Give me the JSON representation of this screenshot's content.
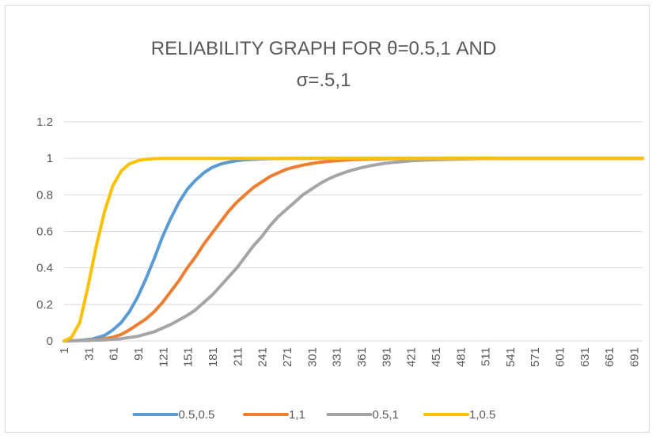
{
  "chart_data": {
    "type": "line",
    "title_lines": [
      "RELIABILITY GRAPH FOR θ=0.5,1 AND",
      "σ=.5,1"
    ],
    "xlabel": "",
    "ylabel": "",
    "ylim": [
      0,
      1.2
    ],
    "yticks": [
      0,
      0.2,
      0.4,
      0.6,
      0.8,
      1,
      1.2
    ],
    "xlim": [
      1,
      701
    ],
    "xticks": [
      1,
      31,
      61,
      91,
      121,
      151,
      181,
      211,
      241,
      271,
      301,
      331,
      361,
      391,
      421,
      451,
      481,
      511,
      541,
      571,
      601,
      631,
      661,
      691
    ],
    "grid": "horizontal",
    "legend_position": "bottom",
    "series": [
      {
        "name": "0.5,0.5",
        "color": "#5b9bd5",
        "x": [
          1,
          20,
          35,
          50,
          60,
          70,
          80,
          90,
          100,
          110,
          120,
          130,
          140,
          150,
          160,
          170,
          180,
          190,
          200,
          210,
          220,
          240,
          260,
          280,
          300,
          330,
          400,
          701
        ],
        "y": [
          0,
          0.003,
          0.01,
          0.03,
          0.06,
          0.1,
          0.16,
          0.24,
          0.34,
          0.45,
          0.57,
          0.67,
          0.76,
          0.83,
          0.88,
          0.92,
          0.95,
          0.968,
          0.979,
          0.987,
          0.992,
          0.997,
          0.999,
          1,
          1,
          1,
          1,
          1
        ]
      },
      {
        "name": "1,1",
        "color": "#ed7d31",
        "x": [
          1,
          30,
          50,
          60,
          70,
          80,
          90,
          100,
          110,
          120,
          130,
          140,
          150,
          160,
          170,
          180,
          190,
          200,
          210,
          220,
          230,
          240,
          250,
          260,
          270,
          280,
          290,
          300,
          310,
          320,
          330,
          350,
          380,
          420,
          460,
          701
        ],
        "y": [
          0,
          0.003,
          0.012,
          0.02,
          0.035,
          0.06,
          0.09,
          0.12,
          0.16,
          0.21,
          0.27,
          0.33,
          0.4,
          0.46,
          0.53,
          0.59,
          0.65,
          0.71,
          0.76,
          0.8,
          0.84,
          0.87,
          0.9,
          0.92,
          0.94,
          0.952,
          0.963,
          0.971,
          0.978,
          0.983,
          0.987,
          0.993,
          0.997,
          0.999,
          1,
          1
        ]
      },
      {
        "name": "0.5,1",
        "color": "#a5a5a5",
        "x": [
          1,
          50,
          70,
          90,
          110,
          130,
          150,
          160,
          170,
          180,
          190,
          200,
          210,
          220,
          230,
          240,
          250,
          260,
          270,
          280,
          290,
          300,
          310,
          320,
          330,
          340,
          350,
          360,
          370,
          380,
          390,
          400,
          420,
          440,
          460,
          480,
          500,
          530,
          560,
          701
        ],
        "y": [
          0,
          0.005,
          0.012,
          0.025,
          0.05,
          0.09,
          0.14,
          0.17,
          0.21,
          0.25,
          0.3,
          0.35,
          0.4,
          0.46,
          0.52,
          0.57,
          0.63,
          0.68,
          0.72,
          0.76,
          0.8,
          0.83,
          0.86,
          0.885,
          0.905,
          0.922,
          0.936,
          0.948,
          0.958,
          0.966,
          0.973,
          0.978,
          0.986,
          0.991,
          0.994,
          0.996,
          0.998,
          0.999,
          1,
          1
        ]
      },
      {
        "name": "1,0.5",
        "color": "#ffc000",
        "x": [
          1,
          10,
          20,
          30,
          40,
          50,
          60,
          70,
          80,
          90,
          100,
          110,
          120,
          130,
          150,
          701
        ],
        "y": [
          0,
          0.02,
          0.1,
          0.3,
          0.52,
          0.71,
          0.85,
          0.93,
          0.97,
          0.987,
          0.995,
          0.998,
          1,
          1,
          1,
          1
        ]
      }
    ]
  }
}
